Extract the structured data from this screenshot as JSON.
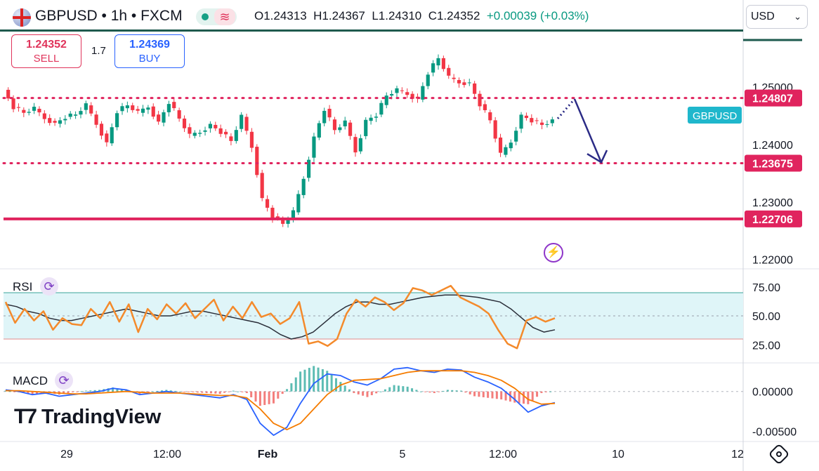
{
  "header": {
    "symbol": "GBPUSD • 1h • FXCM",
    "open": "O1.24313",
    "high": "H1.24367",
    "low": "L1.24310",
    "close": "C1.24352",
    "change": "+0.00039 (+0.03%)"
  },
  "trade": {
    "sell_price": "1.24352",
    "sell_label": "SELL",
    "spread": "1.7",
    "buy_price": "1.24369",
    "buy_label": "BUY"
  },
  "currency": {
    "selected": "USD"
  },
  "panes": {
    "rsi_label": "RSI",
    "macd_label": "MACD"
  },
  "logo": {
    "text": "TradingView"
  },
  "colors": {
    "up": "#089981",
    "down": "#f23645",
    "level_red": "#e0245e",
    "arrow": "#2b2b86",
    "rsi": "#f48a2b",
    "rsi_ma": "#2a2e39",
    "rsi_band": "#dff5f8",
    "macd": "#2962ff",
    "signal": "#f57c00",
    "symbol_tag": "#1fb7cc"
  },
  "chart_data": [
    {
      "type": "candlestick",
      "series_label": "GBPUSD",
      "y_ticks": [
        1.22,
        1.23,
        1.24,
        1.25
      ],
      "y_tick_labels": [
        "1.22000",
        "1.23000",
        "1.24000",
        "1.25000"
      ],
      "ylim": [
        1.2185,
        1.2595
      ],
      "x_tick_labels": [
        "29",
        "12:00",
        "Feb",
        "5",
        "12:00",
        "10",
        "12"
      ],
      "levels": [
        {
          "value": 1.24807,
          "label": "1.24807",
          "style": "dotted"
        },
        {
          "value": 1.23675,
          "label": "1.23675",
          "style": "dotted"
        },
        {
          "value": 1.22706,
          "label": "1.22706",
          "style": "solid"
        }
      ],
      "close_path": [
        1.2495,
        1.2465,
        1.2455,
        1.2462,
        1.2446,
        1.2436,
        1.2448,
        1.2452,
        1.2468,
        1.2436,
        1.2402,
        1.2458,
        1.2468,
        1.2455,
        1.2466,
        1.2438,
        1.2474,
        1.2445,
        1.2415,
        1.2422,
        1.2434,
        1.2422,
        1.2406,
        1.2448,
        1.2396,
        1.2305,
        1.2275,
        1.2262,
        1.2282,
        1.2342,
        1.2412,
        1.2462,
        1.2425,
        1.2438,
        1.2388,
        1.2441,
        1.2452,
        1.2485,
        1.2494,
        1.2488,
        1.2478,
        1.2525,
        1.255,
        1.2516,
        1.2508,
        1.2506,
        1.247,
        1.2442,
        1.2382,
        1.2405,
        1.245,
        1.2442,
        1.2434,
        1.244
      ],
      "forecast_arrow": [
        1.2445,
        1.2479,
        1.2369,
        1.239
      ]
    },
    {
      "type": "line",
      "series_label": "RSI",
      "y_ticks": [
        25,
        50,
        75
      ],
      "y_tick_labels": [
        "25.00",
        "50.00",
        "75.00"
      ],
      "ylim": [
        10,
        90
      ],
      "band": [
        30,
        70
      ],
      "rsi": [
        62,
        44,
        56,
        46,
        54,
        38,
        48,
        43,
        42,
        56,
        48,
        62,
        45,
        60,
        36,
        56,
        47,
        60,
        52,
        61,
        48,
        56,
        64,
        46,
        58,
        48,
        62,
        49,
        52,
        43,
        48,
        62,
        26,
        28,
        24,
        30,
        52,
        64,
        58,
        66,
        62,
        55,
        61,
        74,
        72,
        68,
        72,
        76,
        66,
        62,
        58,
        52,
        38,
        26,
        22,
        46,
        49,
        45,
        48
      ],
      "ma": [
        60,
        58,
        54,
        52,
        48,
        46,
        46,
        48,
        50,
        52,
        54,
        56,
        54,
        52,
        50,
        50,
        52,
        54,
        54,
        52,
        50,
        48,
        46,
        44,
        40,
        34,
        30,
        32,
        36,
        44,
        52,
        58,
        62,
        62,
        60,
        60,
        62,
        64,
        66,
        67,
        68,
        68,
        67,
        66,
        64,
        62,
        56,
        48,
        40,
        36,
        38
      ]
    },
    {
      "type": "line",
      "series_label": "MACD",
      "y_ticks": [
        0,
        -0.005
      ],
      "y_tick_labels": [
        "0.00000",
        "-0.00500"
      ],
      "ylim": [
        -0.0062,
        0.0035
      ],
      "macd": [
        0.0002,
        0.0,
        -0.0004,
        -0.0002,
        -0.0006,
        -0.0004,
        -0.0002,
        0.0,
        0.0004,
        0.0002,
        -0.0004,
        -0.0002,
        0.0,
        -0.0002,
        -0.0004,
        -0.0006,
        -0.0008,
        -0.0004,
        -0.001,
        -0.004,
        -0.0055,
        -0.0045,
        -0.0015,
        0.001,
        0.0022,
        0.002,
        0.0012,
        0.0008,
        0.0016,
        0.0028,
        0.003,
        0.0026,
        0.0024,
        0.0028,
        0.0027,
        0.0018,
        0.0012,
        0.0004,
        -0.001,
        -0.0026,
        -0.0018,
        -0.0014
      ],
      "signal": [
        0.0001,
        0.0001,
        0.0,
        -0.0001,
        -0.0002,
        -0.0003,
        -0.0003,
        -0.0002,
        -0.0001,
        0.0,
        -0.0001,
        -0.0002,
        -0.0002,
        -0.0002,
        -0.0003,
        -0.0004,
        -0.0005,
        -0.0005,
        -0.0008,
        -0.0022,
        -0.004,
        -0.0048,
        -0.004,
        -0.0022,
        -0.0004,
        0.0008,
        0.0014,
        0.0015,
        0.0016,
        0.002,
        0.0024,
        0.0026,
        0.0026,
        0.0026,
        0.0026,
        0.0024,
        0.002,
        0.0014,
        0.0004,
        -0.001,
        -0.0016,
        -0.0015
      ]
    }
  ]
}
